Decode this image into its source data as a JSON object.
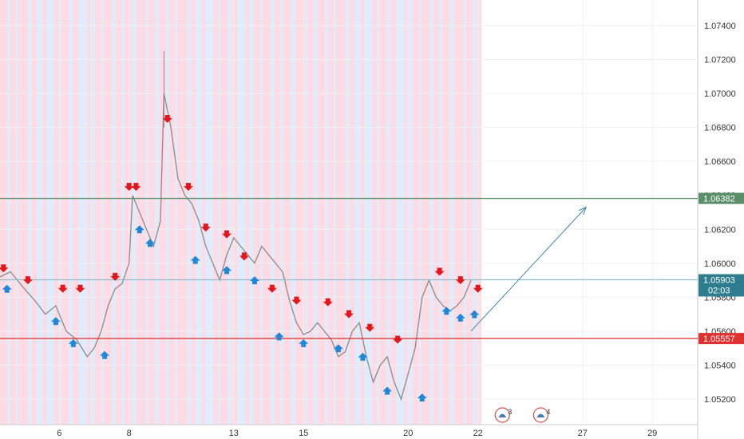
{
  "chart_data": {
    "type": "line",
    "style": "price chart with buy/sell arrows and shaded session bands",
    "y_axis": {
      "ticks": [
        1.052,
        1.054,
        1.056,
        1.058,
        1.06,
        1.062,
        1.064,
        1.066,
        1.068,
        1.07,
        1.072,
        1.074
      ],
      "tick_labels": [
        "1.05200",
        "1.05400",
        "1.05600",
        "1.05800",
        "1.06000",
        "1.06200",
        "1.06400",
        "1.06600",
        "1.06800",
        "1.07000",
        "1.07200",
        "1.07400"
      ],
      "range": [
        1.0505,
        1.0755
      ]
    },
    "x_axis": {
      "tick_labels": [
        "6",
        "8",
        "13",
        "15",
        "20",
        "22",
        "27",
        "29"
      ],
      "tick_day_index": [
        3,
        5,
        8,
        10,
        13,
        15,
        18,
        20
      ],
      "range_days": [
        1.3,
        21.3
      ]
    },
    "horizontal_lines": [
      {
        "value": 1.06382,
        "label": "1.06382",
        "color": "#5b8f6a"
      },
      {
        "value": 1.05557,
        "label": "1.05557",
        "color": "#e03030"
      },
      {
        "value": 1.05903,
        "label": "1.05903",
        "color": "#8fbfcf"
      }
    ],
    "current_price": {
      "value": "1.05903",
      "countdown": "02:03",
      "color": "#2e7d8f"
    },
    "projection_arrow": {
      "from": [
        14.8,
        1.056
      ],
      "to": [
        18.1,
        1.0633
      ],
      "color": "#3a88a8"
    },
    "price_series": {
      "x_days": [
        1.3,
        1.6,
        2.0,
        2.3,
        2.6,
        2.9,
        3.2,
        3.5,
        3.8,
        4.0,
        4.2,
        4.4,
        4.6,
        4.8,
        5.0,
        5.1,
        5.3,
        5.5,
        5.7,
        5.9,
        6.0,
        6.2,
        6.4,
        6.6,
        6.8,
        7.0,
        7.2,
        7.4,
        7.6,
        7.8,
        8.0,
        8.2,
        8.4,
        8.6,
        8.8,
        9.0,
        9.2,
        9.4,
        9.6,
        9.8,
        10.0,
        10.2,
        10.4,
        10.6,
        10.8,
        11.0,
        11.2,
        11.4,
        11.6,
        11.8,
        12.0,
        12.2,
        12.4,
        12.6,
        12.8,
        13.0,
        13.2,
        13.4,
        13.6,
        13.8,
        14.0,
        14.2,
        14.4,
        14.6,
        14.8
      ],
      "y": [
        1.0592,
        1.0595,
        1.0585,
        1.0578,
        1.057,
        1.0575,
        1.056,
        1.0555,
        1.0545,
        1.055,
        1.056,
        1.0575,
        1.0585,
        1.0588,
        1.06,
        1.064,
        1.063,
        1.062,
        1.061,
        1.0625,
        1.07,
        1.068,
        1.065,
        1.064,
        1.0635,
        1.0625,
        1.061,
        1.06,
        1.059,
        1.0605,
        1.0615,
        1.061,
        1.0605,
        1.06,
        1.061,
        1.0605,
        1.06,
        1.0595,
        1.0578,
        1.0565,
        1.0558,
        1.056,
        1.0565,
        1.056,
        1.0555,
        1.0545,
        1.0548,
        1.056,
        1.0565,
        1.0545,
        1.053,
        1.054,
        1.0545,
        1.053,
        1.052,
        1.0535,
        1.055,
        1.058,
        1.059,
        1.058,
        1.0575,
        1.0572,
        1.0575,
        1.058,
        1.059
      ]
    },
    "markers": {
      "sell": [
        [
          1.4,
          1.0597
        ],
        [
          2.1,
          1.059
        ],
        [
          3.1,
          1.0585
        ],
        [
          3.6,
          1.0585
        ],
        [
          4.6,
          1.0592
        ],
        [
          5.0,
          1.0645
        ],
        [
          5.2,
          1.0645
        ],
        [
          6.1,
          1.0685
        ],
        [
          6.7,
          1.0645
        ],
        [
          7.2,
          1.0621
        ],
        [
          7.8,
          1.0617
        ],
        [
          8.3,
          1.0604
        ],
        [
          9.1,
          1.0585
        ],
        [
          9.8,
          1.0578
        ],
        [
          10.7,
          1.0577
        ],
        [
          11.3,
          1.057
        ],
        [
          11.9,
          1.0562
        ],
        [
          12.7,
          1.0555
        ],
        [
          13.9,
          1.0595
        ],
        [
          14.5,
          1.059
        ],
        [
          15.0,
          1.0585
        ]
      ],
      "buy": [
        [
          1.5,
          1.0585
        ],
        [
          2.9,
          1.0566
        ],
        [
          3.4,
          1.0553
        ],
        [
          4.3,
          1.0546
        ],
        [
          5.3,
          1.062
        ],
        [
          5.6,
          1.0612
        ],
        [
          6.9,
          1.0602
        ],
        [
          7.8,
          1.0596
        ],
        [
          8.6,
          1.059
        ],
        [
          9.3,
          1.0557
        ],
        [
          10.0,
          1.0553
        ],
        [
          11.0,
          1.055
        ],
        [
          11.7,
          1.0545
        ],
        [
          12.4,
          1.0525
        ],
        [
          13.4,
          1.0521
        ],
        [
          14.1,
          1.0572
        ],
        [
          14.5,
          1.0568
        ],
        [
          14.9,
          1.057
        ]
      ]
    },
    "session_bands": {
      "colors": [
        "#ffd6de",
        "#dbe9fb"
      ],
      "end_day": 15.1
    },
    "event_icons": [
      {
        "day": 15.7,
        "label": "3"
      },
      {
        "day": 16.8,
        "label": "4"
      }
    ],
    "grid": true,
    "legend": "none"
  }
}
